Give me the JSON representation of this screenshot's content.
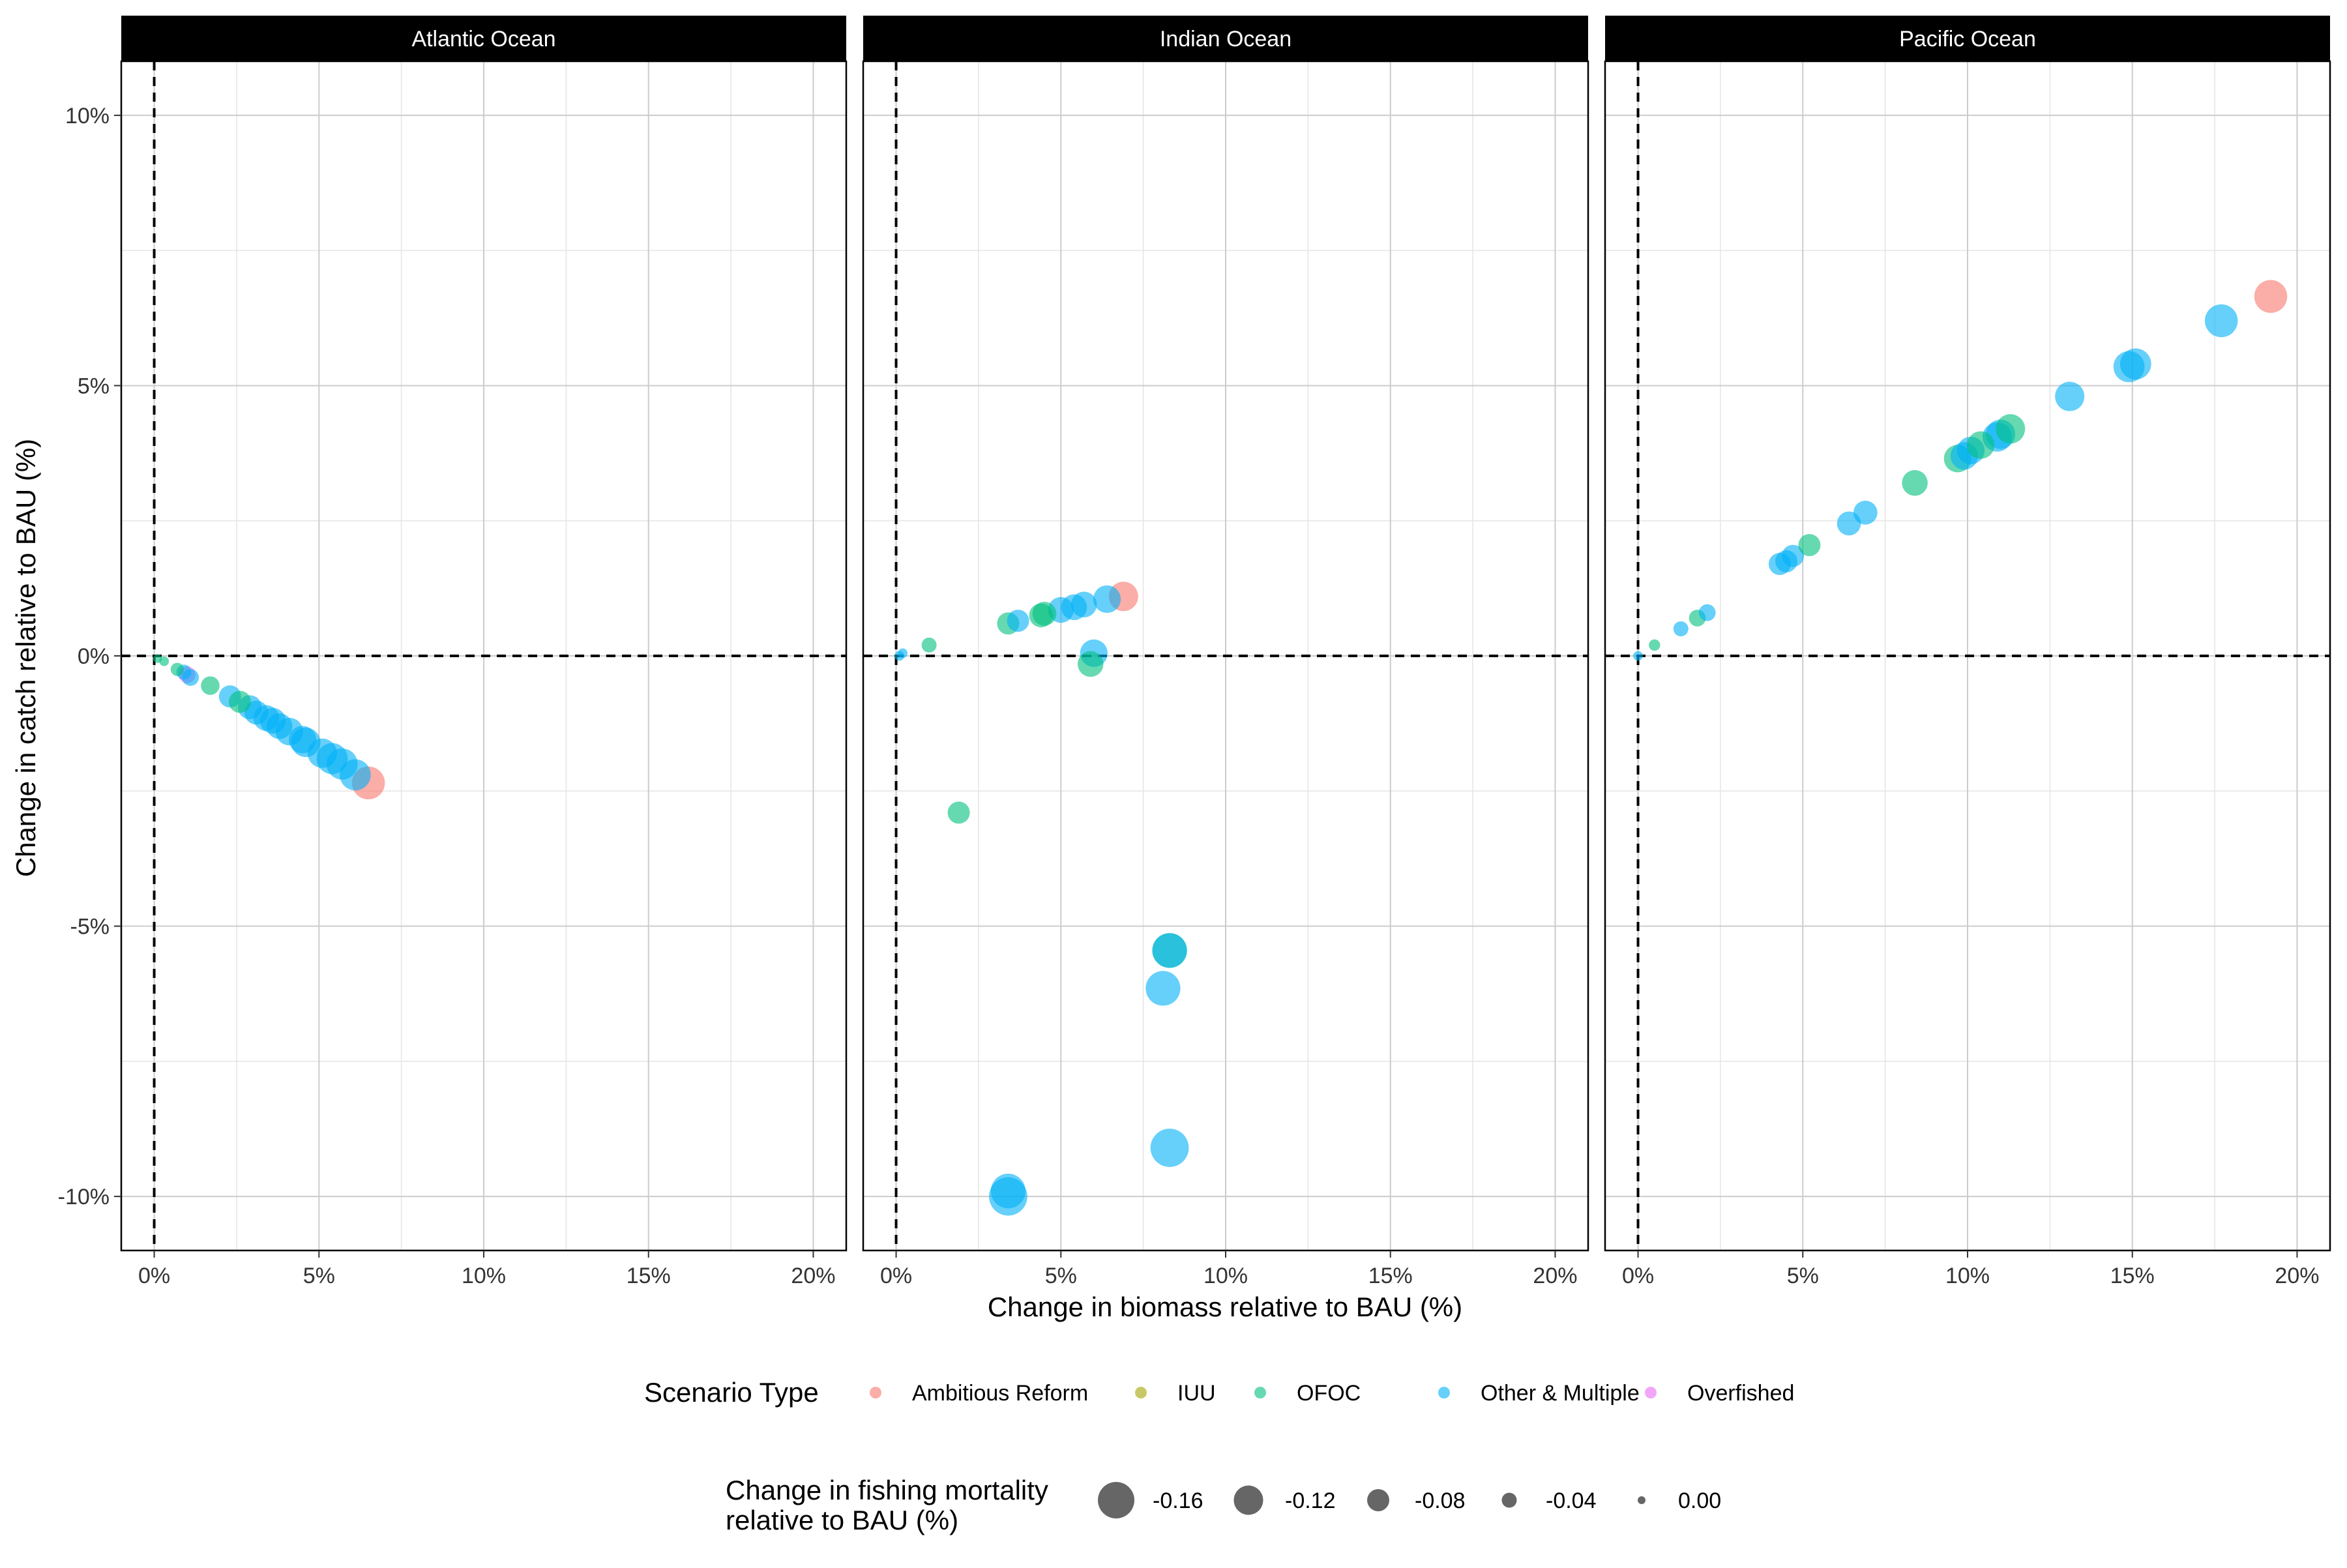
{
  "chart_data": {
    "type": "scatter",
    "facet_by": "ocean",
    "facets": [
      "Atlantic Ocean",
      "Indian Ocean",
      "Pacific Ocean"
    ],
    "xlabel": "Change in biomass relative to BAU (%)",
    "ylabel": "Change in catch relative to BAU (%)",
    "xlim": [
      -1,
      21
    ],
    "ylim": [
      -11,
      11
    ],
    "x_ticks": [
      0,
      5,
      10,
      15,
      20
    ],
    "x_tick_labels": [
      "0%",
      "5%",
      "10%",
      "15%",
      "20%"
    ],
    "y_ticks": [
      -10,
      -5,
      0,
      5,
      10
    ],
    "y_tick_labels": [
      "-10%",
      "-5%",
      "0%",
      "5%",
      "10%"
    ],
    "reference_lines": {
      "x": 0,
      "y": 0,
      "style": "dashed"
    },
    "grid": true,
    "theme": "linedraw",
    "color_legend": {
      "title": "Scenario Type",
      "entries": [
        {
          "name": "Ambitious Reform",
          "color": "#F8766D"
        },
        {
          "name": "IUU",
          "color": "#A3A500"
        },
        {
          "name": "OFOC",
          "color": "#00BF7D"
        },
        {
          "name": "Other & Multiple",
          "color": "#00B0F6"
        },
        {
          "name": "Overfished",
          "color": "#E76BF3"
        }
      ]
    },
    "size_legend": {
      "title_lines": [
        "Change in fishing mortality",
        "relative to BAU (%)"
      ],
      "entries": [
        {
          "label": "-0.16",
          "value": -0.16
        },
        {
          "label": "-0.12",
          "value": -0.12
        },
        {
          "label": "-0.08",
          "value": -0.08
        },
        {
          "label": "-0.04",
          "value": -0.04
        },
        {
          "label": "0.00",
          "value": 0.0
        }
      ]
    },
    "legend_position": "bottom",
    "panels": [
      {
        "ocean": "Atlantic Ocean",
        "points": [
          {
            "x": 0.1,
            "y": -0.05,
            "group": "OFOC",
            "size": -0.005
          },
          {
            "x": 0.3,
            "y": -0.1,
            "group": "OFOC",
            "size": -0.01
          },
          {
            "x": 0.7,
            "y": -0.25,
            "group": "OFOC",
            "size": -0.03
          },
          {
            "x": 0.9,
            "y": -0.3,
            "group": "Other & Multiple",
            "size": -0.04
          },
          {
            "x": 1.0,
            "y": -0.35,
            "group": "Overfished",
            "size": -0.05
          },
          {
            "x": 1.1,
            "y": -0.4,
            "group": "Other & Multiple",
            "size": -0.05
          },
          {
            "x": 1.7,
            "y": -0.55,
            "group": "OFOC",
            "size": -0.06
          },
          {
            "x": 2.3,
            "y": -0.75,
            "group": "Other & Multiple",
            "size": -0.08
          },
          {
            "x": 2.6,
            "y": -0.85,
            "group": "OFOC",
            "size": -0.08
          },
          {
            "x": 2.9,
            "y": -0.95,
            "group": "Other & Multiple",
            "size": -0.09
          },
          {
            "x": 3.1,
            "y": -1.05,
            "group": "Other & Multiple",
            "size": -0.09
          },
          {
            "x": 3.4,
            "y": -1.15,
            "group": "Other & Multiple",
            "size": -0.1
          },
          {
            "x": 3.6,
            "y": -1.2,
            "group": "Other & Multiple",
            "size": -0.1
          },
          {
            "x": 3.8,
            "y": -1.3,
            "group": "Other & Multiple",
            "size": -0.1
          },
          {
            "x": 4.1,
            "y": -1.4,
            "group": "Other & Multiple",
            "size": -0.11
          },
          {
            "x": 4.5,
            "y": -1.55,
            "group": "Other & Multiple",
            "size": -0.11
          },
          {
            "x": 4.6,
            "y": -1.6,
            "group": "Other & Multiple",
            "size": -0.12
          },
          {
            "x": 5.1,
            "y": -1.8,
            "group": "Other & Multiple",
            "size": -0.12
          },
          {
            "x": 5.4,
            "y": -1.9,
            "group": "Other & Multiple",
            "size": -0.13
          },
          {
            "x": 5.7,
            "y": -2.0,
            "group": "Other & Multiple",
            "size": -0.13
          },
          {
            "x": 6.1,
            "y": -2.2,
            "group": "Other & Multiple",
            "size": -0.13
          },
          {
            "x": 6.5,
            "y": -2.35,
            "group": "Ambitious Reform",
            "size": -0.14
          }
        ]
      },
      {
        "ocean": "Indian Ocean",
        "points": [
          {
            "x": 0.1,
            "y": 0.0,
            "group": "Other & Multiple",
            "size": -0.01
          },
          {
            "x": 0.2,
            "y": 0.05,
            "group": "Other & Multiple",
            "size": -0.01
          },
          {
            "x": 1.0,
            "y": 0.2,
            "group": "OFOC",
            "size": -0.04
          },
          {
            "x": 3.4,
            "y": 0.6,
            "group": "OFOC",
            "size": -0.08
          },
          {
            "x": 3.7,
            "y": 0.65,
            "group": "Other & Multiple",
            "size": -0.08
          },
          {
            "x": 4.4,
            "y": 0.75,
            "group": "OFOC",
            "size": -0.09
          },
          {
            "x": 4.5,
            "y": 0.78,
            "group": "OFOC",
            "size": -0.09
          },
          {
            "x": 5.0,
            "y": 0.85,
            "group": "Other & Multiple",
            "size": -0.1
          },
          {
            "x": 5.4,
            "y": 0.9,
            "group": "Other & Multiple",
            "size": -0.1
          },
          {
            "x": 5.7,
            "y": 0.95,
            "group": "Other & Multiple",
            "size": -0.1
          },
          {
            "x": 6.4,
            "y": 1.05,
            "group": "Other & Multiple",
            "size": -0.11
          },
          {
            "x": 6.9,
            "y": 1.1,
            "group": "Ambitious Reform",
            "size": -0.12
          },
          {
            "x": 6.0,
            "y": 0.05,
            "group": "Other & Multiple",
            "size": -0.11
          },
          {
            "x": 5.9,
            "y": -0.15,
            "group": "OFOC",
            "size": -0.1
          },
          {
            "x": 1.9,
            "y": -2.9,
            "group": "OFOC",
            "size": -0.08
          },
          {
            "x": 8.3,
            "y": -5.45,
            "group": "OFOC",
            "size": -0.15
          },
          {
            "x": 8.3,
            "y": -5.45,
            "group": "Other & Multiple",
            "size": -0.15
          },
          {
            "x": 8.1,
            "y": -6.15,
            "group": "Other & Multiple",
            "size": -0.15
          },
          {
            "x": 8.3,
            "y": -9.1,
            "group": "Other & Multiple",
            "size": -0.17
          },
          {
            "x": 3.4,
            "y": -10.0,
            "group": "Other & Multiple",
            "size": -0.17
          },
          {
            "x": 3.4,
            "y": -9.9,
            "group": "Other & Multiple",
            "size": -0.15
          }
        ]
      },
      {
        "ocean": "Pacific Ocean",
        "points": [
          {
            "x": 0.0,
            "y": 0.0,
            "group": "Other & Multiple",
            "size": -0.01
          },
          {
            "x": 0.5,
            "y": 0.2,
            "group": "OFOC",
            "size": -0.02
          },
          {
            "x": 1.3,
            "y": 0.5,
            "group": "Other & Multiple",
            "size": -0.04
          },
          {
            "x": 1.8,
            "y": 0.7,
            "group": "OFOC",
            "size": -0.05
          },
          {
            "x": 2.1,
            "y": 0.8,
            "group": "Other & Multiple",
            "size": -0.05
          },
          {
            "x": 4.3,
            "y": 1.7,
            "group": "Other & Multiple",
            "size": -0.08
          },
          {
            "x": 4.5,
            "y": 1.75,
            "group": "Other & Multiple",
            "size": -0.08
          },
          {
            "x": 4.7,
            "y": 1.85,
            "group": "Other & Multiple",
            "size": -0.08
          },
          {
            "x": 5.2,
            "y": 2.05,
            "group": "OFOC",
            "size": -0.08
          },
          {
            "x": 6.4,
            "y": 2.45,
            "group": "Other & Multiple",
            "size": -0.09
          },
          {
            "x": 6.9,
            "y": 2.65,
            "group": "Other & Multiple",
            "size": -0.09
          },
          {
            "x": 8.4,
            "y": 3.2,
            "group": "OFOC",
            "size": -0.1
          },
          {
            "x": 9.7,
            "y": 3.65,
            "group": "OFOC",
            "size": -0.11
          },
          {
            "x": 9.9,
            "y": 3.7,
            "group": "Other & Multiple",
            "size": -0.11
          },
          {
            "x": 10.1,
            "y": 3.8,
            "group": "Other & Multiple",
            "size": -0.11
          },
          {
            "x": 10.4,
            "y": 3.9,
            "group": "OFOC",
            "size": -0.11
          },
          {
            "x": 10.9,
            "y": 4.05,
            "group": "Other & Multiple",
            "size": -0.12
          },
          {
            "x": 11.0,
            "y": 4.1,
            "group": "Other & Multiple",
            "size": -0.12
          },
          {
            "x": 11.3,
            "y": 4.2,
            "group": "OFOC",
            "size": -0.12
          },
          {
            "x": 13.1,
            "y": 4.8,
            "group": "Other & Multiple",
            "size": -0.12
          },
          {
            "x": 14.9,
            "y": 5.35,
            "group": "Other & Multiple",
            "size": -0.13
          },
          {
            "x": 15.1,
            "y": 5.4,
            "group": "Other & Multiple",
            "size": -0.13
          },
          {
            "x": 17.7,
            "y": 6.2,
            "group": "Other & Multiple",
            "size": -0.14
          },
          {
            "x": 19.2,
            "y": 6.65,
            "group": "Ambitious Reform",
            "size": -0.14
          }
        ]
      }
    ]
  }
}
